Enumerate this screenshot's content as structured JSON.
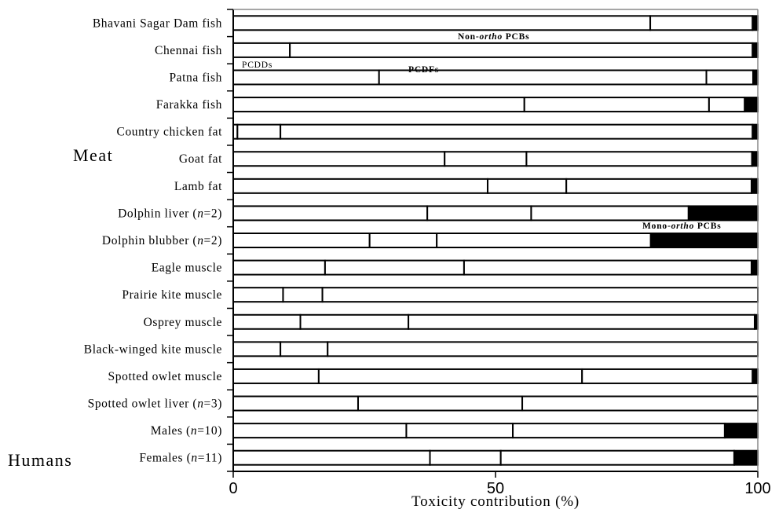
{
  "chart_data": {
    "type": "bar",
    "orientation": "horizontal",
    "stacked": true,
    "xlabel": "Toxicity contribution (%)",
    "xlim": [
      0,
      100
    ],
    "x_ticks": [
      "0",
      "50",
      "100"
    ],
    "categories": [
      "Bhavani Sagar Dam fish",
      "Chennai fish",
      "Patna fish",
      "Farakka fish",
      "Country chicken fat",
      "Goat fat",
      "Lamb fat",
      "Dolphin liver (n=2)",
      "Dolphin blubber (n=2)",
      "Eagle muscle",
      "Prairie kite muscle",
      "Osprey muscle",
      "Black-winged kite muscle",
      "Spotted owlet muscle",
      "Spotted owlet liver (n=3)",
      "Males (n=10)",
      "Females (n=11)"
    ],
    "series": [
      {
        "name": "PCDDs",
        "color": "#ffffff",
        "values": [
          79.5,
          10.8,
          27.8,
          55.5,
          0.8,
          40.3,
          48.5,
          37.0,
          26.0,
          17.5,
          9.5,
          12.8,
          9.0,
          16.3,
          23.8,
          33.0,
          37.5
        ]
      },
      {
        "name": "PCDFs",
        "color": "#ffffff",
        "values": [
          0,
          0,
          62.4,
          35.2,
          8.2,
          15.6,
          15.0,
          19.8,
          12.8,
          26.5,
          7.5,
          20.6,
          9.0,
          50.2,
          31.3,
          20.3,
          13.5
        ]
      },
      {
        "name": "Non-ortho PCBs",
        "color": "#ffffff",
        "values": [
          19.5,
          88.2,
          8.9,
          6.8,
          90.0,
          43.0,
          35.3,
          30.0,
          40.8,
          54.8,
          83.0,
          66.0,
          82.0,
          32.5,
          44.9,
          40.4,
          44.5
        ]
      },
      {
        "name": "Mono-ortho PCBs",
        "color": "#000000",
        "values": [
          1.0,
          1.0,
          0.9,
          2.5,
          1.0,
          1.1,
          1.2,
          13.2,
          20.4,
          1.2,
          0,
          0.6,
          0,
          1.0,
          0,
          6.3,
          4.5
        ]
      }
    ],
    "group_labels": [
      {
        "label": "Meat",
        "near": "Goat fat"
      },
      {
        "label": "Humans",
        "near": "Males (n=10)"
      }
    ],
    "annotations": [
      {
        "text": "PCDDs",
        "near": "Chennai fish"
      },
      {
        "text": "PCDFs",
        "near": "Patna fish"
      },
      {
        "text_prefix": "Non-",
        "text_italic": "ortho",
        "text_suffix": " PCBs",
        "near": "Chennai fish"
      },
      {
        "text_prefix": "Mono-",
        "text_italic": "ortho",
        "text_suffix": " PCBs",
        "near": "Dolphin blubber (n=2)"
      }
    ],
    "legend": "none",
    "grid": false
  }
}
